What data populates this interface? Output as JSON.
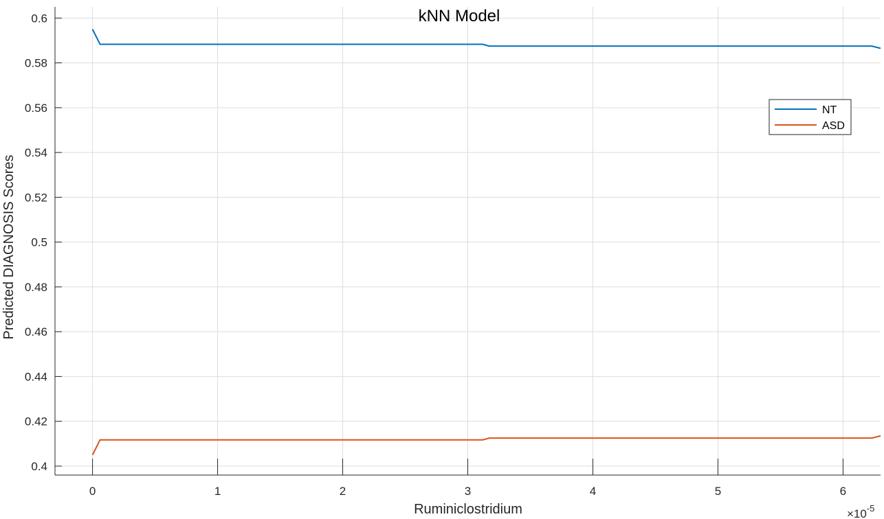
{
  "chart_data": {
    "type": "line",
    "title": "kNN Model",
    "xlabel": "Ruminiclostridium",
    "ylabel": "Predicted DIAGNOSIS Scores",
    "x_exponent_label": "×10",
    "x_exponent_power": "-5",
    "xlim": [
      -0.3,
      6.3
    ],
    "ylim": [
      0.396,
      0.605
    ],
    "x_ticks": [
      0,
      1,
      2,
      3,
      4,
      5,
      6
    ],
    "x_tick_labels": [
      "0",
      "1",
      "2",
      "3",
      "4",
      "5",
      "6"
    ],
    "y_ticks": [
      0.4,
      0.42,
      0.44,
      0.46,
      0.48,
      0.5,
      0.52,
      0.54,
      0.56,
      0.58,
      0.6
    ],
    "y_tick_labels": [
      "0.4",
      "0.42",
      "0.44",
      "0.46",
      "0.48",
      "0.5",
      "0.52",
      "0.54",
      "0.56",
      "0.58",
      "0.6"
    ],
    "grid": true,
    "legend_position": "top-right",
    "series": [
      {
        "name": "NT",
        "color": "#0072BD",
        "x": [
          0,
          0.06,
          3.12,
          3.17,
          6.23,
          6.3
        ],
        "y": [
          0.595,
          0.5883,
          0.5883,
          0.5875,
          0.5875,
          0.5865
        ]
      },
      {
        "name": "ASD",
        "color": "#D95319",
        "x": [
          0,
          0.06,
          3.12,
          3.17,
          6.23,
          6.3
        ],
        "y": [
          0.405,
          0.4117,
          0.4117,
          0.4125,
          0.4125,
          0.4135
        ]
      }
    ]
  }
}
